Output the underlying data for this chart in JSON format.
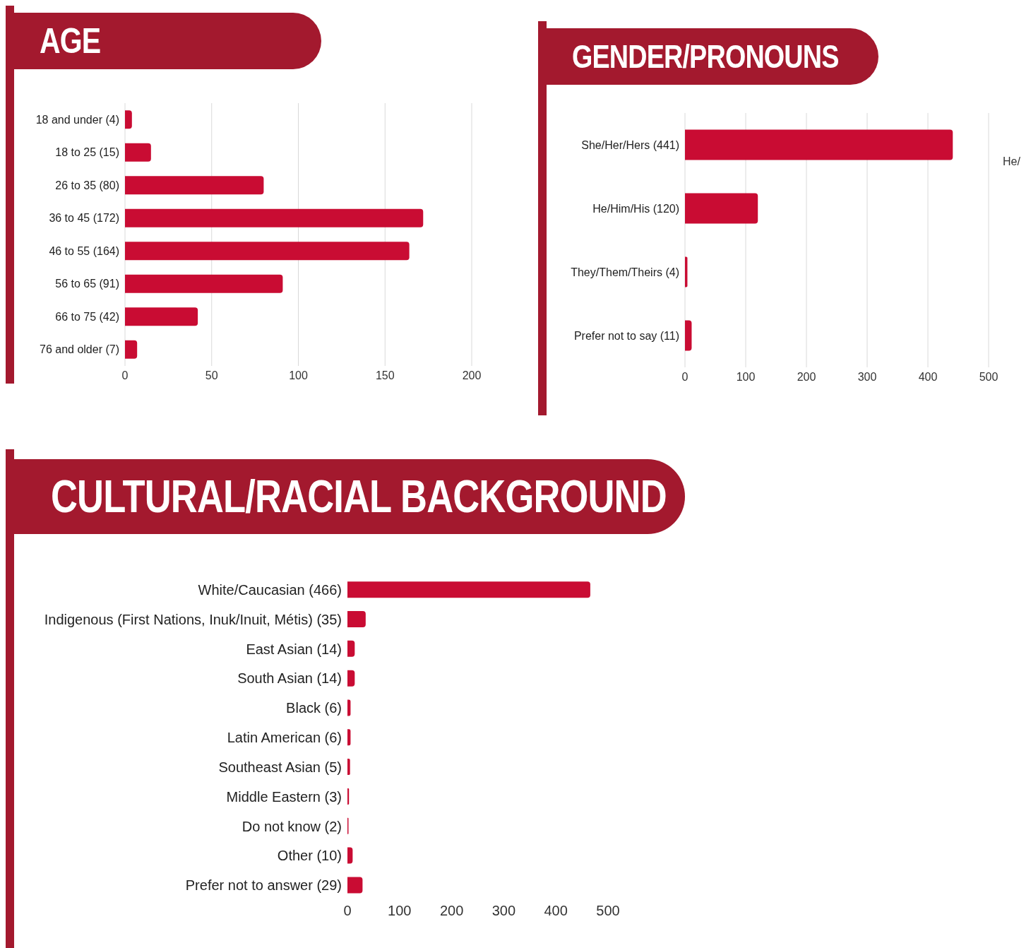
{
  "chart_data": [
    {
      "type": "bar",
      "orientation": "horizontal",
      "title": "AGE",
      "categories": [
        "18 and under (4)",
        "18 to 25 (15)",
        "26 to 35 (80)",
        "36 to 45 (172)",
        "46 to 55 (164)",
        "56 to 65 (91)",
        "66 to 75 (42)",
        "76 and older (7)"
      ],
      "values": [
        4,
        15,
        80,
        172,
        164,
        91,
        42,
        7
      ],
      "color": "#c90c33",
      "xlim": [
        0,
        200
      ],
      "xticks": [
        0,
        50,
        100,
        150,
        200
      ],
      "grid": "x",
      "legend": false
    },
    {
      "type": "bar",
      "orientation": "horizontal",
      "title": "GENDER/PRONOUNS",
      "categories": [
        "She/Her/Hers (441)",
        "He/Him/His (120)",
        "They/Them/Theirs (4)",
        "Prefer not to say (11)"
      ],
      "values": [
        441,
        120,
        4,
        11
      ],
      "color": "#c90c33",
      "xlim": [
        0,
        500
      ],
      "xticks": [
        0,
        100,
        200,
        300,
        400,
        500
      ],
      "grid": "x",
      "legend": false,
      "annotations": [
        "He/"
      ]
    },
    {
      "type": "bar",
      "orientation": "horizontal",
      "title": "CULTURAL/RACIAL BACKGROUND",
      "categories": [
        "White/Caucasian (466)",
        "Indigenous (First Nations, Inuk/Inuit, Métis) (35)",
        "East Asian (14)",
        "South Asian (14)",
        "Black (6)",
        "Latin American (6)",
        "Southeast Asian (5)",
        "Middle Eastern (3)",
        "Do not know (2)",
        "Other (10)",
        "Prefer not to answer (29)"
      ],
      "values": [
        466,
        35,
        14,
        14,
        6,
        6,
        5,
        3,
        2,
        10,
        29
      ],
      "color": "#c90c33",
      "xlim": [
        0,
        500
      ],
      "xticks": [
        0,
        100,
        200,
        300,
        400,
        500
      ],
      "grid": false,
      "legend": false
    }
  ]
}
